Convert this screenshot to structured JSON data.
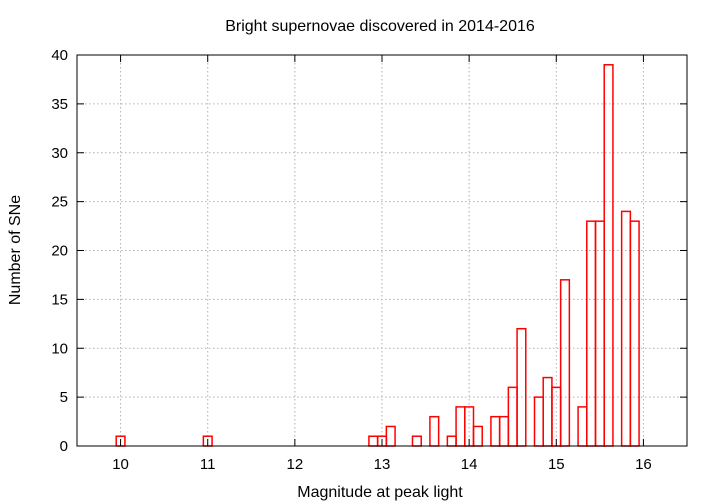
{
  "chart_data": {
    "type": "bar",
    "title": "Bright supernovae discovered in 2014-2016",
    "xlabel": "Magnitude at peak light",
    "ylabel": "Number of SNe",
    "xlim": [
      9.5,
      16.5
    ],
    "ylim": [
      0,
      40
    ],
    "xticks": [
      10,
      11,
      12,
      13,
      14,
      15,
      16
    ],
    "yticks": [
      0,
      5,
      10,
      15,
      20,
      25,
      30,
      35,
      40
    ],
    "bin_width": 0.1,
    "grid": true,
    "bar_color": "#ff0000",
    "x": [
      10.0,
      11.0,
      12.9,
      13.0,
      13.1,
      13.4,
      13.6,
      13.8,
      13.9,
      14.0,
      14.1,
      14.3,
      14.4,
      14.5,
      14.6,
      14.8,
      14.9,
      15.0,
      15.1,
      15.3,
      15.4,
      15.5,
      15.6,
      15.8,
      15.9
    ],
    "values": [
      1,
      1,
      1,
      1,
      2,
      1,
      3,
      1,
      4,
      4,
      2,
      3,
      3,
      6,
      12,
      5,
      7,
      6,
      17,
      4,
      23,
      23,
      39,
      24,
      23
    ]
  }
}
